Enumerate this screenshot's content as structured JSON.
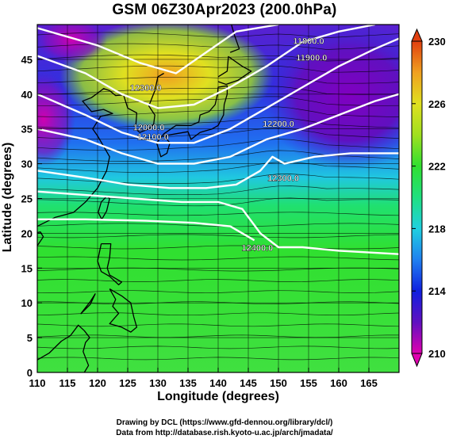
{
  "title": "GSM 06Z30Apr2023 (200.0hPa)",
  "axes": {
    "xlabel": "Longitude (degrees)",
    "ylabel": "Latitude  (degrees)",
    "x_range": [
      110,
      170
    ],
    "y_range": [
      0,
      50
    ],
    "x_ticks": [
      110,
      115,
      120,
      125,
      130,
      135,
      140,
      145,
      150,
      155,
      160,
      165
    ],
    "y_ticks": [
      0,
      5,
      10,
      15,
      20,
      25,
      30,
      35,
      40,
      45
    ],
    "grid": true
  },
  "colorbar": {
    "ticks": [
      210,
      214,
      218,
      222,
      226,
      230
    ],
    "min": 210,
    "max": 230,
    "colors": [
      "#e000b0",
      "#6010c0",
      "#1020e0",
      "#2080f0",
      "#20d0e0",
      "#20e080",
      "#30e030",
      "#a0e020",
      "#e0e020",
      "#f0a020",
      "#e04010"
    ]
  },
  "contour_labels": [
    {
      "text": "11800.0",
      "lon": 155.0,
      "lat": 47.2
    },
    {
      "text": "11900.0",
      "lon": 155.5,
      "lat": 44.8
    },
    {
      "text": "12200.0",
      "lon": 150.0,
      "lat": 35.3
    },
    {
      "text": "12100.0",
      "lon": 129.2,
      "lat": 33.4
    },
    {
      "text": "12000.0",
      "lon": 128.5,
      "lat": 34.8
    },
    {
      "text": "12300.0",
      "lon": 150.8,
      "lat": 27.5
    },
    {
      "text": "12400.0",
      "lon": 146.5,
      "lat": 17.5
    },
    {
      "text": "12300.0",
      "lon": 128.0,
      "lat": 40.5
    }
  ],
  "footer": {
    "line1": "Drawing by DCL (https://www.gfd-dennou.org/library/dcl/)",
    "line2": "Data from http://database.rish.kyoto-u.ac.jp/arch/jmadata/"
  }
}
